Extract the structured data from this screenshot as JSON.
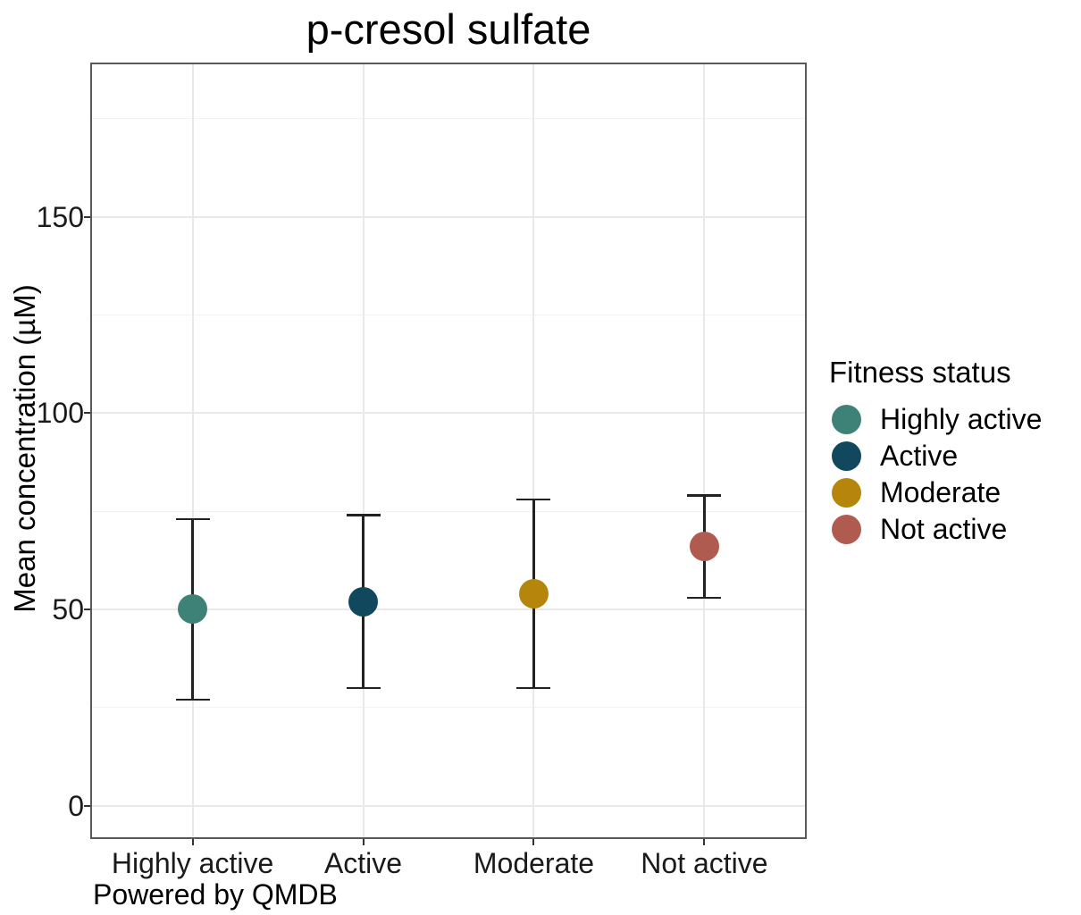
{
  "title": "p-cresol sulfate",
  "caption": "Powered by QMDB",
  "legend": {
    "title": "Fitness status",
    "entries": [
      {
        "label": "Highly active",
        "color": "#3E8277"
      },
      {
        "label": "Active",
        "color": "#11485E"
      },
      {
        "label": "Moderate",
        "color": "#B5860B"
      },
      {
        "label": "Not active",
        "color": "#B05B50"
      }
    ]
  },
  "chart_data": {
    "type": "scatter",
    "subtype": "point-with-errorbar",
    "title": "p-cresol sulfate",
    "xlabel": "",
    "ylabel": "Mean concentration (µM)",
    "categories": [
      "Highly active",
      "Active",
      "Moderate",
      "Not active"
    ],
    "series": [
      {
        "name": "Highly active",
        "mean": 50,
        "lower": 27,
        "upper": 73,
        "color": "#3E8277"
      },
      {
        "name": "Active",
        "mean": 52,
        "lower": 30,
        "upper": 74,
        "color": "#11485E"
      },
      {
        "name": "Moderate",
        "mean": 54,
        "lower": 30,
        "upper": 78,
        "color": "#B5860B"
      },
      {
        "name": "Not active",
        "mean": 66,
        "lower": 53,
        "upper": 79,
        "color": "#B05B50"
      }
    ],
    "yticks": [
      0,
      50,
      100,
      150
    ],
    "minor_yticks": [
      25,
      75,
      125,
      175
    ],
    "ylim": [
      -8.5,
      189.3
    ],
    "grid": "major+minor",
    "legend_position": "right",
    "legend_title": "Fitness status"
  }
}
